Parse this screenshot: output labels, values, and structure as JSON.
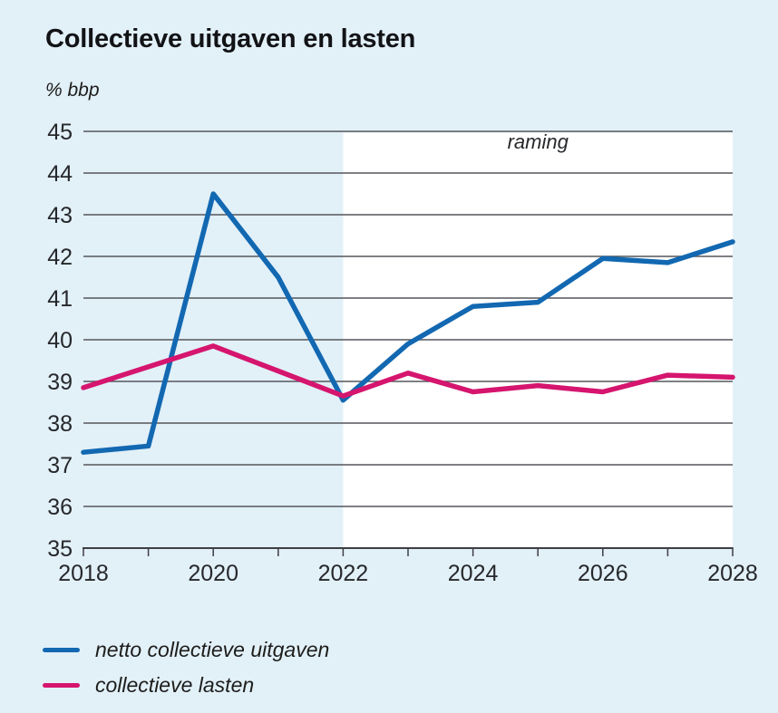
{
  "title": "Collectieve uitgaven en lasten",
  "unit_label": "% bbp",
  "chart_data": {
    "type": "line",
    "title": "Collectieve uitgaven en lasten",
    "ylabel": "% bbp",
    "xlabel": "",
    "x": [
      2018,
      2019,
      2020,
      2021,
      2022,
      2023,
      2024,
      2025,
      2026,
      2027,
      2028
    ],
    "series": [
      {
        "name": "netto collectieve uitgaven",
        "color": "#1268b1",
        "values": [
          37.3,
          37.45,
          43.5,
          41.5,
          38.55,
          39.9,
          40.8,
          40.9,
          41.95,
          41.85,
          42.35
        ]
      },
      {
        "name": "collectieve lasten",
        "color": "#d5156e",
        "values": [
          38.85,
          39.35,
          39.85,
          39.25,
          38.65,
          39.2,
          38.75,
          38.9,
          38.75,
          39.15,
          39.1
        ]
      }
    ],
    "ylim": [
      35,
      45
    ],
    "yticks": [
      35,
      36,
      37,
      38,
      39,
      40,
      41,
      42,
      43,
      44,
      45
    ],
    "xticks": [
      2018,
      2019,
      2020,
      2021,
      2022,
      2023,
      2024,
      2025,
      2026,
      2027,
      2028
    ],
    "xtick_labels": [
      "2018",
      "2020",
      "2022",
      "2024",
      "2026",
      "2028"
    ],
    "grid": true,
    "grid_color": "#55575b",
    "axis_color": "#3d3f42",
    "text_color": "#26282b",
    "page_background": "#e2f0f8",
    "legend_position": "bottom-left",
    "forecast": {
      "label": "raming",
      "from_x": 2022,
      "to_x": 2028,
      "region_color": "#ffffff",
      "label_color": "#8d8279"
    }
  },
  "legend": {
    "items": [
      {
        "label": "netto collectieve uitgaven",
        "color": "#1268b1"
      },
      {
        "label": "collectieve lasten",
        "color": "#d5156e"
      }
    ]
  }
}
